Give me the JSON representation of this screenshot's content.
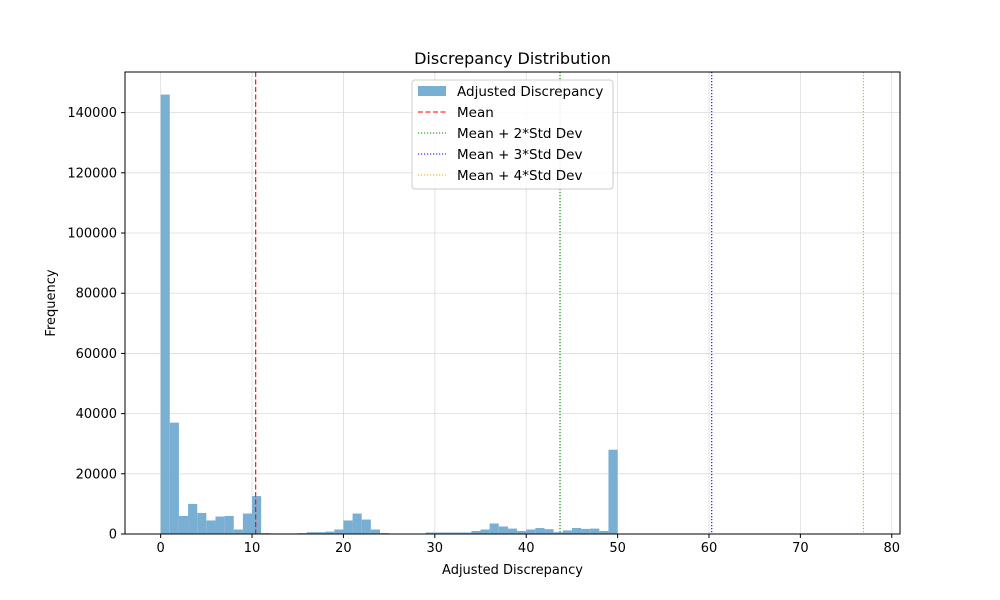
{
  "chart_data": {
    "type": "bar",
    "title": "Discrepancy Distribution",
    "xlabel": "Adjusted Discrepancy",
    "ylabel": "Frequency",
    "xlim": [
      -3.9,
      80.9
    ],
    "ylim": [
      0,
      153500
    ],
    "xticks": [
      0,
      10,
      20,
      30,
      40,
      50,
      60,
      70,
      80
    ],
    "yticks": [
      0,
      20000,
      40000,
      60000,
      80000,
      100000,
      120000,
      140000
    ],
    "grid": true,
    "legend_position": "upper center",
    "histogram": {
      "name": "Adjusted Discrepancy",
      "color": "#7aafd4",
      "bin_start": 0,
      "bin_width": 1.0,
      "counts": [
        146000,
        37000,
        6000,
        10000,
        7000,
        4500,
        5800,
        6000,
        1500,
        6800,
        12600,
        300,
        200,
        200,
        200,
        300,
        600,
        600,
        800,
        1500,
        4500,
        6800,
        4800,
        1500,
        300,
        0,
        0,
        0,
        0,
        500,
        500,
        500,
        500,
        500,
        1000,
        1500,
        3500,
        2500,
        1800,
        1000,
        1500,
        2000,
        1600,
        600,
        1200,
        2000,
        1700,
        1800,
        1000,
        28000
      ]
    },
    "reference_lines": [
      {
        "name": "Mean",
        "x": 10.4,
        "color": "#ff0000",
        "style": "dashed"
      },
      {
        "name": "Mean + 2*Std Dev",
        "x": 43.7,
        "color": "#008000",
        "style": "dotted"
      },
      {
        "name": "Mean + 3*Std Dev",
        "x": 60.3,
        "color": "#0000ff",
        "style": "dotted"
      },
      {
        "name": "Mean + 4*Std Dev",
        "x": 76.9,
        "color": "#ffa500",
        "style": "dotted"
      }
    ]
  }
}
